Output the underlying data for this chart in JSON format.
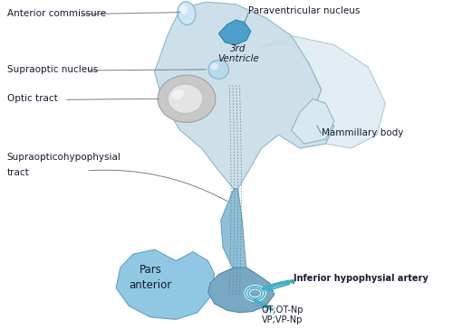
{
  "bg_color": "#ffffff",
  "labels": {
    "anterior_commissure": "Anterior commissure",
    "paraventricular": "Paraventricular nucleus",
    "supraoptic": "Supraoptic nucleus",
    "third_ventricle": "3rd\nVentricle",
    "optic_tract": "Optic tract",
    "mammillary": "Mammillary body",
    "supraoptico_line1": "Supraopticohypophysial",
    "supraoptico_line2": "tract",
    "pars_anterior_line1": "Pars",
    "pars_anterior_line2": "anterior",
    "inferior_artery": "Inferior hypophysial artery",
    "ot_vp": "OT;OT-Np\nVP;VP-Np"
  },
  "colors": {
    "hypothalamus_light": "#c8dde8",
    "hypothalamus_mid": "#b0ccd8",
    "hypothalamus_edge": "#8ab0c0",
    "paraventricular_fill": "#4da0cc",
    "paraventricular_edge": "#3080a8",
    "ac_fill": "#cce4f4",
    "ac_edge": "#88b8d0",
    "son_fill": "#b8d8ec",
    "son_edge": "#7aaec8",
    "optic_outer": "#c8c8c8",
    "optic_inner": "#e4e4e4",
    "optic_edge": "#a0a0a0",
    "stalk_fill": "#8ec0d8",
    "stalk_edge": "#6aa0bc",
    "pars_fill": "#90c8e4",
    "pars_edge": "#68a8c8",
    "posterior_fill": "#78a8c4",
    "posterior_edge": "#5888a4",
    "artery_fill": "#40b0c8",
    "artery_edge": "#2090a8",
    "tract_color": "#607888",
    "text_color": "#1a1a2e",
    "line_color": "#708090"
  }
}
